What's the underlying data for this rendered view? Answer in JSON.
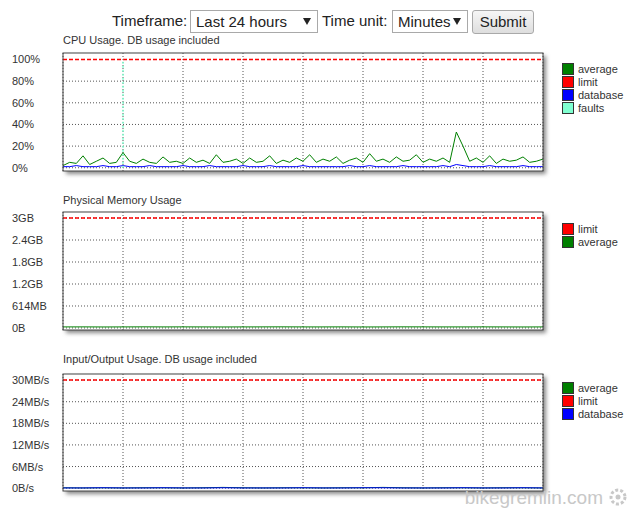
{
  "controls": {
    "timeframe_label": "Timeframe:",
    "timeframe": "Last 24 hours",
    "time_unit_label": "Time unit:",
    "time_unit": "Minutes",
    "button": "Submit"
  },
  "watermark": "bikegremlin.com",
  "chart_data": [
    {
      "type": "line",
      "title": "CPU Usage. DB usage included",
      "x": [
        0,
        20,
        40,
        60,
        80,
        100,
        120,
        140,
        160,
        180,
        200,
        220,
        240,
        260,
        280,
        300,
        320,
        340,
        360,
        380,
        400,
        420,
        440,
        460,
        480,
        500,
        520,
        540,
        560,
        580,
        600,
        620,
        640,
        660,
        680,
        700,
        720,
        740,
        760,
        780,
        800,
        820,
        840,
        860,
        880,
        900,
        920,
        940,
        960,
        980,
        1000,
        1020,
        1040,
        1060,
        1080,
        1100,
        1120,
        1140,
        1160,
        1180,
        1200,
        1220,
        1240,
        1260,
        1280,
        1300,
        1320,
        1340,
        1360,
        1380,
        1400,
        1420,
        1440
      ],
      "xlim": [
        0,
        1440
      ],
      "xticks": [
        0,
        180,
        360,
        540,
        720,
        900,
        1080,
        1260,
        1440
      ],
      "ylim": [
        -3,
        106
      ],
      "yticks": [
        {
          "value": 0,
          "label": "0%"
        },
        {
          "value": 20,
          "label": "20%"
        },
        {
          "value": 40,
          "label": "40%"
        },
        {
          "value": 60,
          "label": "60%"
        },
        {
          "value": 80,
          "label": "80%"
        },
        {
          "value": 100,
          "label": "100%"
        }
      ],
      "grid": true,
      "legend": "right",
      "tick_labels": "y",
      "series": [
        {
          "name": "average",
          "color": "#008000",
          "line_style": "solid",
          "values": [
            2,
            5,
            4,
            11,
            3,
            6,
            9,
            4,
            5,
            14,
            6,
            4,
            8,
            5,
            4,
            10,
            5,
            6,
            4,
            9,
            5,
            7,
            4,
            12,
            5,
            6,
            8,
            4,
            9,
            5,
            6,
            11,
            4,
            7,
            5,
            9,
            6,
            12,
            5,
            8,
            6,
            10,
            4,
            7,
            9,
            5,
            13,
            6,
            8,
            5,
            10,
            6,
            7,
            12,
            5,
            8,
            6,
            9,
            5,
            33,
            20,
            6,
            9,
            5,
            11,
            4,
            8,
            6,
            7,
            10,
            5,
            6,
            8
          ]
        },
        {
          "name": "limit",
          "color": "#ff0000",
          "line_style": "dashed",
          "values": [
            100,
            100,
            100,
            100,
            100,
            100,
            100,
            100,
            100,
            100,
            100,
            100,
            100,
            100,
            100,
            100,
            100,
            100,
            100,
            100,
            100,
            100,
            100,
            100,
            100,
            100,
            100,
            100,
            100,
            100,
            100,
            100,
            100,
            100,
            100,
            100,
            100,
            100,
            100,
            100,
            100,
            100,
            100,
            100,
            100,
            100,
            100,
            100,
            100,
            100,
            100,
            100,
            100,
            100,
            100,
            100,
            100,
            100,
            100,
            100,
            100,
            100,
            100,
            100,
            100,
            100,
            100,
            100,
            100,
            100,
            100,
            100,
            100
          ]
        },
        {
          "name": "database",
          "color": "#0000ff",
          "line_style": "solid",
          "values": [
            1,
            1,
            2,
            1,
            1,
            1,
            2,
            1,
            1,
            2,
            1,
            1,
            1,
            2,
            1,
            1,
            1,
            1,
            2,
            1,
            1,
            1,
            2,
            1,
            1,
            1,
            1,
            2,
            1,
            1,
            1,
            2,
            1,
            1,
            1,
            1,
            2,
            1,
            1,
            1,
            1,
            1,
            1,
            2,
            1,
            1,
            2,
            1,
            1,
            1,
            1,
            2,
            1,
            1,
            1,
            1,
            1,
            2,
            1,
            3,
            2,
            1,
            1,
            1,
            2,
            1,
            1,
            1,
            1,
            2,
            1,
            1,
            1
          ]
        },
        {
          "name": "faults",
          "color": "#80ffd0",
          "type": "bar",
          "line_style": "dotted",
          "values": [
            null,
            null,
            null,
            null,
            null,
            null,
            null,
            null,
            null,
            100,
            null,
            null,
            null,
            null,
            null,
            null,
            null,
            null,
            null,
            null,
            null,
            null,
            null,
            null,
            null,
            null,
            null,
            null,
            null,
            null,
            null,
            null,
            null,
            null,
            null,
            null,
            null,
            null,
            null,
            null,
            null,
            null,
            null,
            null,
            null,
            null,
            null,
            null,
            null,
            null,
            null,
            null,
            null,
            null,
            null,
            null,
            null,
            null,
            null,
            null,
            null,
            null,
            null,
            null,
            null,
            null,
            null,
            null,
            null,
            null,
            null,
            null,
            null
          ]
        }
      ]
    },
    {
      "type": "line",
      "title": "Physical Memory Usage",
      "x": [
        0,
        60,
        120,
        180,
        240,
        300,
        360,
        420,
        480,
        540,
        600,
        660,
        720,
        780,
        840,
        900,
        960,
        1020,
        1080,
        1140,
        1200,
        1260,
        1320,
        1380,
        1440
      ],
      "xlim": [
        0,
        1440
      ],
      "xticks": [
        0,
        180,
        360,
        540,
        720,
        900,
        1080,
        1260,
        1440
      ],
      "ylim": [
        -56,
        3240
      ],
      "yticks": [
        {
          "value": 0,
          "label": "0B"
        },
        {
          "value": 614.4,
          "label": "614MB"
        },
        {
          "value": 1228.8,
          "label": "1.2GB"
        },
        {
          "value": 1843.2,
          "label": "1.8GB"
        },
        {
          "value": 2457.6,
          "label": "2.4GB"
        },
        {
          "value": 3072,
          "label": "3GB"
        }
      ],
      "grid": true,
      "legend": "right",
      "tick_labels": "y",
      "series": [
        {
          "name": "limit",
          "color": "#ff0000",
          "line_style": "dashed",
          "values": [
            3072,
            3072,
            3072,
            3072,
            3072,
            3072,
            3072,
            3072,
            3072,
            3072,
            3072,
            3072,
            3072,
            3072,
            3072,
            3072,
            3072,
            3072,
            3072,
            3072,
            3072,
            3072,
            3072,
            3072,
            3072
          ]
        },
        {
          "name": "average",
          "color": "#008000",
          "line_style": "solid",
          "values": [
            30,
            31,
            29,
            30,
            32,
            30,
            31,
            30,
            29,
            30,
            31,
            32,
            30,
            30,
            31,
            29,
            30,
            32,
            31,
            30,
            30,
            31,
            30,
            29,
            30
          ]
        }
      ]
    },
    {
      "type": "line",
      "title": "Input/Output Usage. DB usage included",
      "x": [
        0,
        60,
        120,
        180,
        240,
        300,
        360,
        420,
        480,
        540,
        600,
        660,
        720,
        780,
        840,
        900,
        960,
        1020,
        1080,
        1140,
        1200,
        1260,
        1320,
        1380,
        1440
      ],
      "xlim": [
        0,
        1440
      ],
      "xticks": [
        0,
        180,
        360,
        540,
        720,
        900,
        1080,
        1260,
        1440
      ],
      "ylim": [
        -0.8,
        31.7
      ],
      "yticks": [
        {
          "value": 0,
          "label": "0B/s"
        },
        {
          "value": 6,
          "label": "6MB/s"
        },
        {
          "value": 12,
          "label": "12MB/s"
        },
        {
          "value": 18,
          "label": "18MB/s"
        },
        {
          "value": 24,
          "label": "24MB/s"
        },
        {
          "value": 30,
          "label": "30MB/s"
        }
      ],
      "grid": true,
      "legend": "right",
      "tick_labels": "y",
      "series": [
        {
          "name": "average",
          "color": "#008000",
          "line_style": "solid",
          "values": [
            0.1,
            0.05,
            0.1,
            0.05,
            0.1,
            0.1,
            0.05,
            0.1,
            0.2,
            0.1,
            0.05,
            0.1,
            0.1,
            0.05,
            0.1,
            0.1,
            0.2,
            0.1,
            0.05,
            0.1,
            0.1,
            0.05,
            0.1,
            0.1,
            0.05
          ]
        },
        {
          "name": "limit",
          "color": "#ff0000",
          "line_style": "dashed",
          "values": [
            30,
            30,
            30,
            30,
            30,
            30,
            30,
            30,
            30,
            30,
            30,
            30,
            30,
            30,
            30,
            30,
            30,
            30,
            30,
            30,
            30,
            30,
            30,
            30,
            30
          ]
        },
        {
          "name": "database",
          "color": "#0000ff",
          "line_style": "solid",
          "values": [
            0.05,
            0.05,
            0.1,
            0.05,
            0.05,
            0.1,
            0.05,
            0.05,
            0.1,
            0.05,
            0.05,
            0.05,
            0.1,
            0.05,
            0.05,
            0.1,
            0.1,
            0.05,
            0.05,
            0.05,
            0.1,
            0.05,
            0.05,
            0.1,
            0.05
          ]
        }
      ]
    }
  ]
}
